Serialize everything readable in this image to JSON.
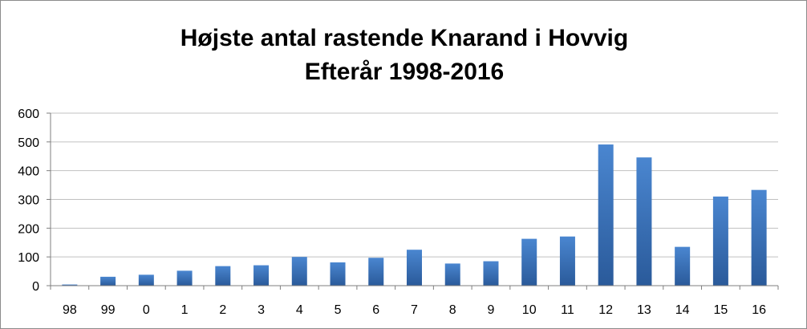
{
  "chart_data": {
    "type": "bar",
    "title_lines": [
      "Højste antal rastende Knarand i Hovvig",
      "Efterår 1998-2016"
    ],
    "xlabel": "",
    "ylabel": "",
    "ylim": [
      0,
      600
    ],
    "yticks": [
      "0",
      "100",
      "200",
      "300",
      "400",
      "500",
      "600"
    ],
    "grid": true,
    "legend": "none",
    "categories": [
      "98",
      "99",
      "0",
      "1",
      "2",
      "3",
      "4",
      "5",
      "6",
      "7",
      "8",
      "9",
      "10",
      "11",
      "12",
      "13",
      "14",
      "15",
      "16"
    ],
    "values": [
      4,
      31,
      38,
      52,
      68,
      71,
      100,
      81,
      97,
      125,
      77,
      85,
      163,
      171,
      491,
      446,
      135,
      310,
      333
    ],
    "bar_color_top": "#4a86d0",
    "bar_color_bottom": "#2a5a9a",
    "grid_color": "#c0c0c0",
    "axis_color": "#7f7f7f"
  }
}
